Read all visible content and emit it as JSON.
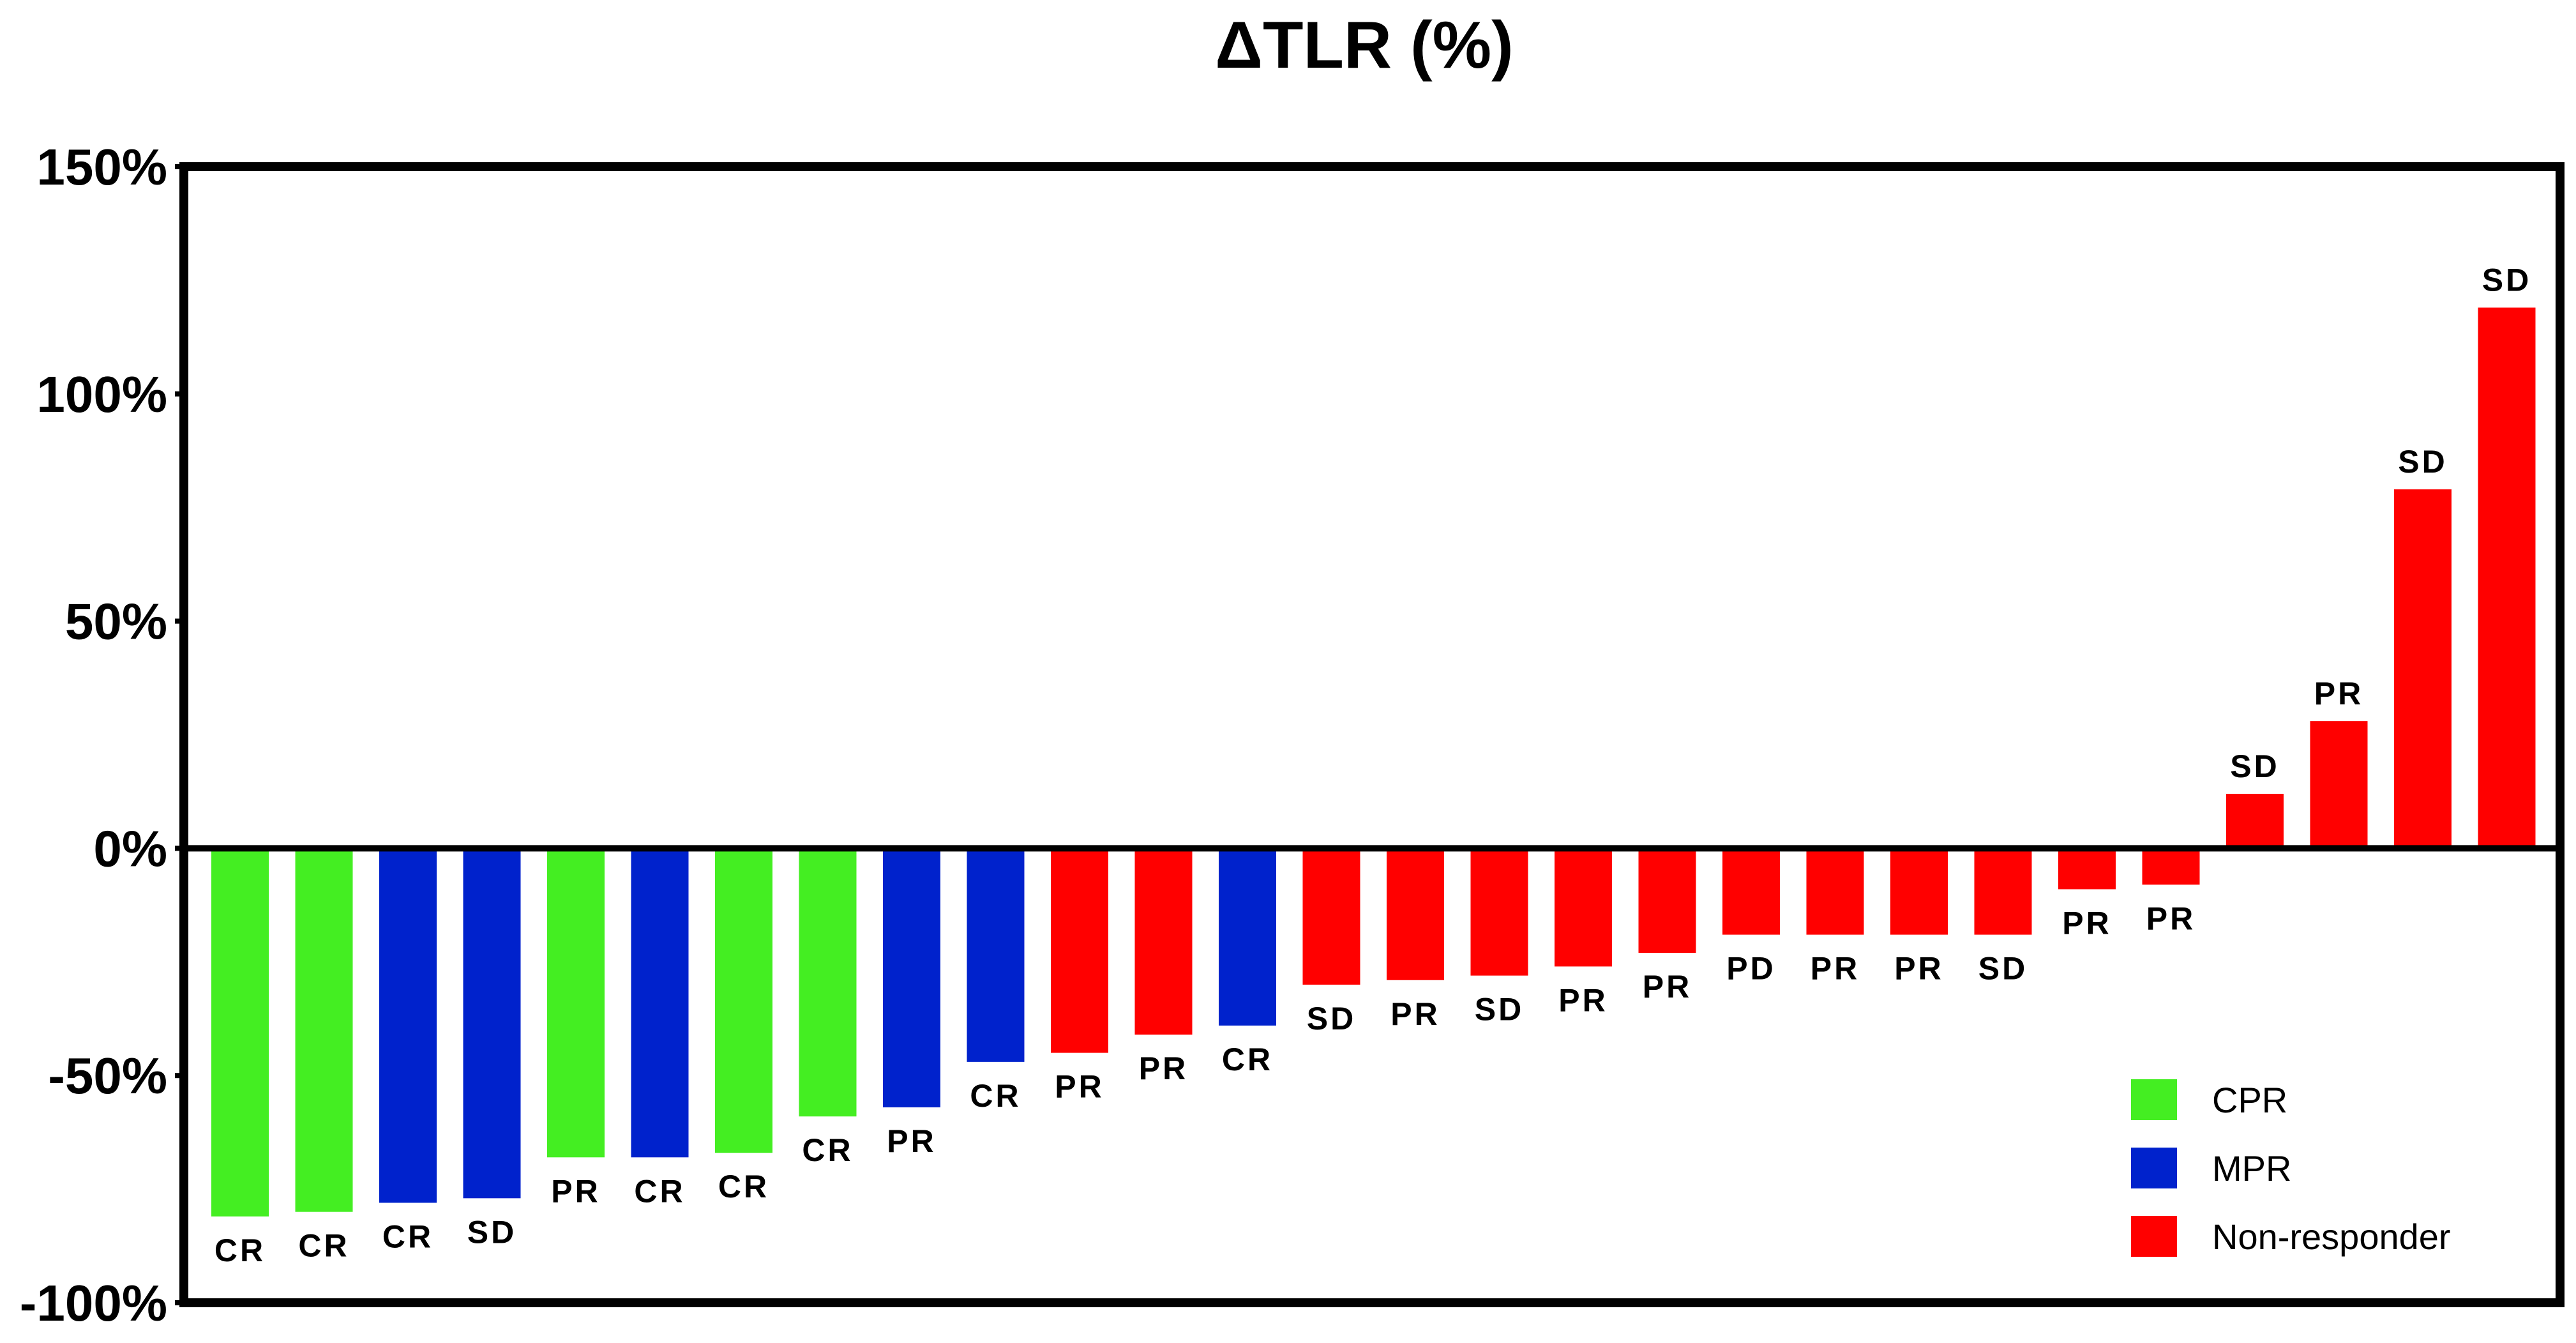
{
  "chart_data": {
    "type": "bar",
    "title": "ΔTLR (%)",
    "xlabel": "",
    "ylabel": "",
    "ylim": [
      -100,
      150
    ],
    "yticks": [
      -100,
      -50,
      0,
      50,
      100,
      150
    ],
    "ytick_labels": [
      "-100%",
      "-50%",
      "0%",
      "50%",
      "100%",
      "150%"
    ],
    "grid": false,
    "legend_position": "bottom-right",
    "colors": {
      "CPR": "#44ee22",
      "MPR": "#0022cc",
      "Non-responder": "#ff0000"
    },
    "legend": [
      {
        "group": "CPR",
        "label": "CPR"
      },
      {
        "group": "MPR",
        "label": "MPR"
      },
      {
        "group": "Non-responder",
        "label": "Non-responder"
      }
    ],
    "bars": [
      {
        "value": -81,
        "label": "CR",
        "group": "CPR"
      },
      {
        "value": -80,
        "label": "CR",
        "group": "CPR"
      },
      {
        "value": -78,
        "label": "CR",
        "group": "MPR"
      },
      {
        "value": -77,
        "label": "SD",
        "group": "MPR"
      },
      {
        "value": -68,
        "label": "PR",
        "group": "CPR"
      },
      {
        "value": -68,
        "label": "CR",
        "group": "MPR"
      },
      {
        "value": -67,
        "label": "CR",
        "group": "CPR"
      },
      {
        "value": -59,
        "label": "CR",
        "group": "CPR"
      },
      {
        "value": -57,
        "label": "PR",
        "group": "MPR"
      },
      {
        "value": -47,
        "label": "CR",
        "group": "MPR"
      },
      {
        "value": -45,
        "label": "PR",
        "group": "Non-responder"
      },
      {
        "value": -41,
        "label": "PR",
        "group": "Non-responder"
      },
      {
        "value": -39,
        "label": "CR",
        "group": "MPR"
      },
      {
        "value": -30,
        "label": "SD",
        "group": "Non-responder"
      },
      {
        "value": -29,
        "label": "PR",
        "group": "Non-responder"
      },
      {
        "value": -28,
        "label": "SD",
        "group": "Non-responder"
      },
      {
        "value": -26,
        "label": "PR",
        "group": "Non-responder"
      },
      {
        "value": -23,
        "label": "PR",
        "group": "Non-responder"
      },
      {
        "value": -19,
        "label": "PD",
        "group": "Non-responder"
      },
      {
        "value": -19,
        "label": "PR",
        "group": "Non-responder"
      },
      {
        "value": -19,
        "label": "PR",
        "group": "Non-responder"
      },
      {
        "value": -19,
        "label": "SD",
        "group": "Non-responder"
      },
      {
        "value": -9,
        "label": "PR",
        "group": "Non-responder"
      },
      {
        "value": -8,
        "label": "PR",
        "group": "Non-responder"
      },
      {
        "value": 12,
        "label": "SD",
        "group": "Non-responder"
      },
      {
        "value": 28,
        "label": "PR",
        "group": "Non-responder"
      },
      {
        "value": 79,
        "label": "SD",
        "group": "Non-responder"
      },
      {
        "value": 119,
        "label": "SD",
        "group": "Non-responder"
      }
    ]
  }
}
